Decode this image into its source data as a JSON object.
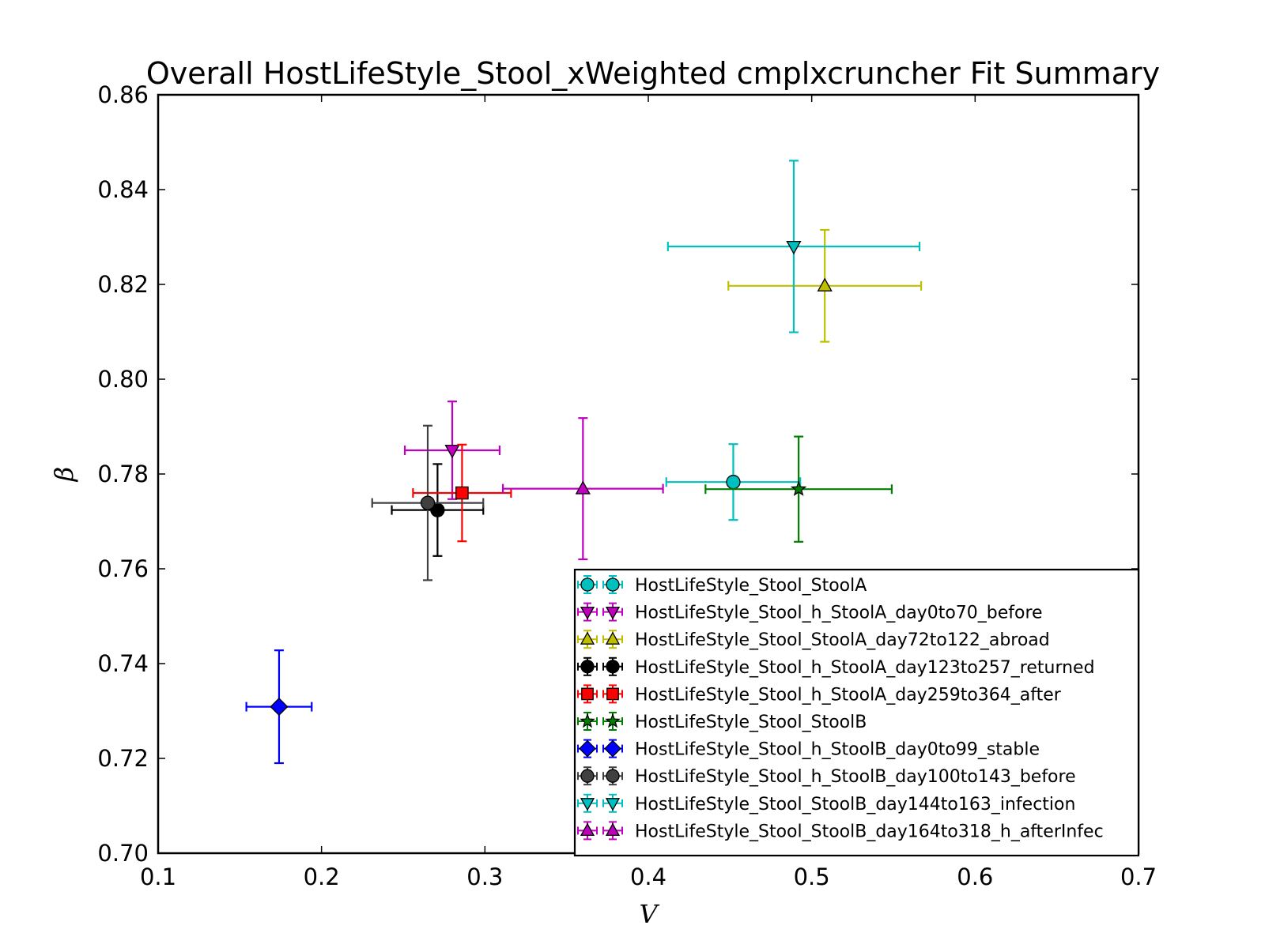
{
  "chart_data": {
    "type": "scatter",
    "title": "Overall HostLifeStyle_Stool_xWeighted cmplxcruncher Fit Summary",
    "xlabel": "V",
    "ylabel": "β",
    "xlim": [
      0.1,
      0.7
    ],
    "ylim": [
      0.7,
      0.86
    ],
    "xticks": [
      "0.1",
      "0.2",
      "0.3",
      "0.4",
      "0.5",
      "0.6",
      "0.7"
    ],
    "yticks": [
      "0.70",
      "0.72",
      "0.74",
      "0.76",
      "0.78",
      "0.80",
      "0.82",
      "0.84",
      "0.86"
    ],
    "xtick_values": [
      0.1,
      0.2,
      0.3,
      0.4,
      0.5,
      0.6,
      0.7
    ],
    "ytick_values": [
      0.7,
      0.72,
      0.74,
      0.76,
      0.78,
      0.8,
      0.82,
      0.84,
      0.86
    ],
    "grid": false,
    "legend_position": "lower-right",
    "series": [
      {
        "name": "HostLifeStyle_Stool_StoolA",
        "marker": "circle",
        "color": "#00BFBF",
        "x": 0.452,
        "y": 0.7783,
        "xerr": [
          0.041,
          0.041
        ],
        "yerr": [
          0.008,
          0.008
        ]
      },
      {
        "name": "HostLifeStyle_Stool_h_StoolA_day0to70_before",
        "marker": "triangle-down",
        "color": "#BF00BF",
        "x": 0.28,
        "y": 0.785,
        "xerr": [
          0.029,
          0.029
        ],
        "yerr": [
          0.0103,
          0.0103
        ]
      },
      {
        "name": "HostLifeStyle_Stool_StoolA_day72to122_abroad",
        "marker": "triangle-up",
        "color": "#BFBF00",
        "x": 0.508,
        "y": 0.8197,
        "xerr": [
          0.059,
          0.059
        ],
        "yerr": [
          0.0118,
          0.0118
        ]
      },
      {
        "name": "HostLifeStyle_Stool_h_StoolA_day123to257_returned",
        "marker": "circle",
        "color": "#000000",
        "x": 0.271,
        "y": 0.7724,
        "xerr": [
          0.028,
          0.028
        ],
        "yerr": [
          0.0097,
          0.0097
        ]
      },
      {
        "name": "HostLifeStyle_Stool_h_StoolA_day259to364_after",
        "marker": "square",
        "color": "#FF0000",
        "x": 0.286,
        "y": 0.776,
        "xerr": [
          0.03,
          0.03
        ],
        "yerr": [
          0.0102,
          0.0102
        ]
      },
      {
        "name": "HostLifeStyle_Stool_StoolB",
        "marker": "star",
        "color": "#007F00",
        "x": 0.492,
        "y": 0.7768,
        "xerr": [
          0.057,
          0.057
        ],
        "yerr": [
          0.0111,
          0.0111
        ]
      },
      {
        "name": "HostLifeStyle_Stool_h_StoolB_day0to99_stable",
        "marker": "diamond",
        "color": "#0000FF",
        "x": 0.174,
        "y": 0.7309,
        "xerr": [
          0.02,
          0.02
        ],
        "yerr": [
          0.0119,
          0.0119
        ]
      },
      {
        "name": "HostLifeStyle_Stool_h_StoolB_day100to143_before",
        "marker": "circle",
        "color": "#404040",
        "x": 0.265,
        "y": 0.7739,
        "xerr": [
          0.034,
          0.034
        ],
        "yerr": [
          0.0163,
          0.0163
        ]
      },
      {
        "name": "HostLifeStyle_Stool_StoolB_day144to163_infection",
        "marker": "triangle-down",
        "color": "#00BFBF",
        "x": 0.489,
        "y": 0.828,
        "xerr": [
          0.077,
          0.077
        ],
        "yerr": [
          0.0181,
          0.0181
        ]
      },
      {
        "name": "HostLifeStyle_Stool_StoolB_day164to318_h_afterInfec",
        "marker": "triangle-up",
        "color": "#BF00BF",
        "x": 0.36,
        "y": 0.7769,
        "xerr": [
          0.049,
          0.049
        ],
        "yerr": [
          0.0149,
          0.0149
        ]
      }
    ]
  }
}
